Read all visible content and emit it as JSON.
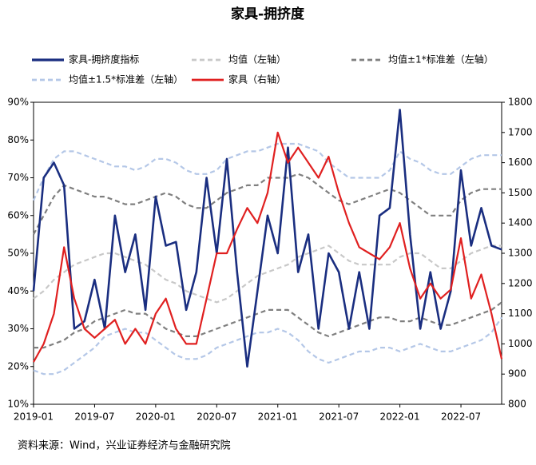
{
  "chart_data": {
    "type": "line",
    "title": "家具-拥挤度",
    "source": "资料来源：Wind，兴业证券经济与金融研究院",
    "categories": [
      "2019-01",
      null,
      null,
      null,
      null,
      null,
      "2019-07",
      null,
      null,
      null,
      null,
      null,
      "2020-01",
      null,
      null,
      null,
      null,
      null,
      "2020-07",
      null,
      null,
      null,
      null,
      null,
      "2021-01",
      null,
      null,
      null,
      null,
      null,
      "2021-07",
      null,
      null,
      null,
      null,
      null,
      "2022-01",
      null,
      null,
      null,
      null,
      null,
      "2022-07",
      null,
      null,
      null,
      null
    ],
    "series": [
      {
        "name": "家具-拥挤度指标",
        "color": "#1a2e80",
        "width": 2.6,
        "dash": "",
        "values": [
          40,
          70,
          74,
          68,
          30,
          32,
          43,
          30,
          60,
          45,
          55,
          35,
          65,
          52,
          53,
          35,
          45,
          70,
          50,
          75,
          45,
          20,
          40,
          60,
          50,
          78,
          45,
          55,
          30,
          50,
          45,
          30,
          45,
          30,
          60,
          62,
          88,
          55,
          30,
          45,
          30,
          40,
          72,
          52,
          62,
          52,
          51
        ]
      },
      {
        "name": "均值（左轴）",
        "color": "#c8c8c8",
        "width": 2.2,
        "dash": "6 4",
        "values": [
          38,
          40,
          43,
          45,
          47,
          48,
          49,
          50,
          50,
          49,
          48,
          47,
          45,
          43,
          42,
          40,
          39,
          38,
          37,
          38,
          40,
          42,
          44,
          45,
          46,
          47,
          49,
          50,
          51,
          52,
          50,
          48,
          47,
          47,
          47,
          47,
          49,
          50,
          50,
          48,
          46,
          46,
          48,
          50,
          51,
          52,
          52
        ]
      },
      {
        "name": "均值±1*标准差（左轴）",
        "color": "#7f7f7f",
        "width": 2.2,
        "dash": "6 4",
        "values": [
          55,
          60,
          65,
          68,
          67,
          66,
          65,
          65,
          64,
          63,
          63,
          64,
          65,
          66,
          65,
          63,
          62,
          62,
          64,
          66,
          67,
          68,
          68,
          70,
          70,
          70,
          71,
          70,
          68,
          66,
          64,
          63,
          64,
          65,
          66,
          67,
          66,
          64,
          62,
          60,
          60,
          60,
          64,
          66,
          67,
          67,
          67
        ]
      },
      {
        "name": "",
        "color": "#7f7f7f",
        "width": 2.2,
        "dash": "6 4",
        "values": [
          25,
          25,
          26,
          27,
          29,
          30,
          32,
          33,
          34,
          35,
          34,
          34,
          32,
          30,
          29,
          28,
          28,
          29,
          30,
          31,
          32,
          33,
          34,
          35,
          35,
          35,
          33,
          31,
          29,
          28,
          29,
          30,
          31,
          32,
          33,
          33,
          32,
          32,
          33,
          32,
          31,
          31,
          32,
          33,
          34,
          35,
          37
        ]
      },
      {
        "name": "均值±1.5*标准差（左轴）",
        "color": "#b4c7e7",
        "width": 2.2,
        "dash": "6 4",
        "values": [
          64,
          70,
          75,
          77,
          77,
          76,
          75,
          74,
          73,
          73,
          72,
          73,
          75,
          75,
          74,
          72,
          71,
          71,
          72,
          75,
          76,
          77,
          77,
          78,
          79,
          79,
          79,
          78,
          77,
          74,
          72,
          70,
          70,
          70,
          70,
          72,
          77,
          75,
          74,
          72,
          71,
          71,
          73,
          75,
          76,
          76,
          76
        ]
      },
      {
        "name": "",
        "color": "#b4c7e7",
        "width": 2.2,
        "dash": "6 4",
        "values": [
          19,
          18,
          18,
          19,
          21,
          23,
          25,
          28,
          29,
          30,
          29,
          29,
          27,
          25,
          23,
          22,
          22,
          23,
          25,
          26,
          27,
          28,
          29,
          29,
          30,
          29,
          27,
          24,
          22,
          21,
          22,
          23,
          24,
          24,
          25,
          25,
          24,
          25,
          26,
          25,
          24,
          24,
          25,
          26,
          27,
          29,
          33
        ]
      },
      {
        "name": "家具（右轴）",
        "color": "#e02020",
        "width": 2.2,
        "dash": "",
        "axis": "y2",
        "values": [
          940,
          1000,
          1100,
          1320,
          1150,
          1050,
          1020,
          1050,
          1080,
          1000,
          1050,
          1000,
          1100,
          1150,
          1050,
          1000,
          1000,
          1150,
          1300,
          1300,
          1380,
          1450,
          1400,
          1500,
          1700,
          1600,
          1650,
          1600,
          1550,
          1620,
          1500,
          1400,
          1320,
          1300,
          1280,
          1320,
          1400,
          1250,
          1150,
          1200,
          1150,
          1180,
          1350,
          1150,
          1230,
          1100,
          950
        ]
      }
    ],
    "ylim": [
      10,
      90
    ],
    "yticks": [
      {
        "value": 10,
        "label": "10%"
      },
      {
        "value": 20,
        "label": "20%"
      },
      {
        "value": 30,
        "label": "30%"
      },
      {
        "value": 40,
        "label": "40%"
      },
      {
        "value": 50,
        "label": "50%"
      },
      {
        "value": 60,
        "label": "60%"
      },
      {
        "value": 70,
        "label": "70%"
      },
      {
        "value": 80,
        "label": "80%"
      },
      {
        "value": 90,
        "label": "90%"
      }
    ],
    "y2lim": [
      800,
      1800
    ],
    "y2ticks": [
      800,
      900,
      1000,
      1100,
      1200,
      1300,
      1400,
      1500,
      1600,
      1700,
      1800
    ]
  }
}
